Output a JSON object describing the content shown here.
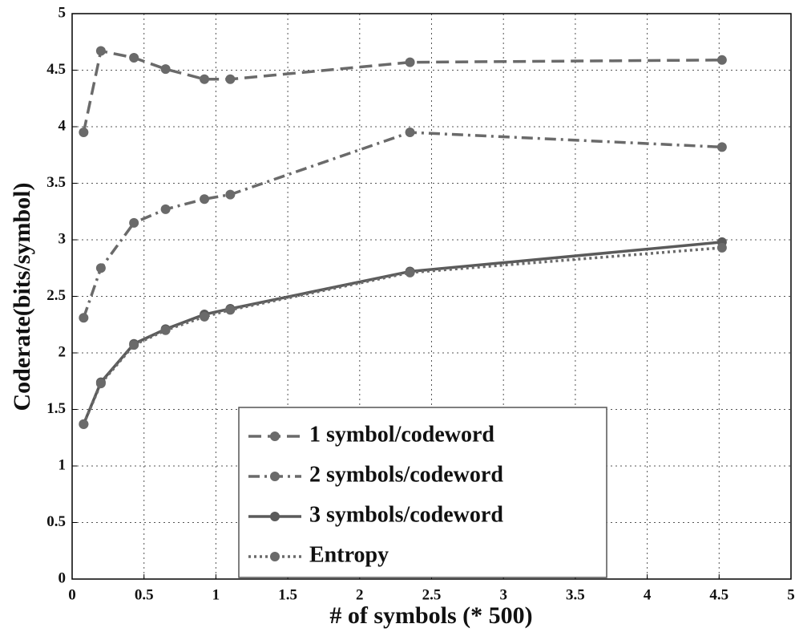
{
  "chart_data": {
    "type": "line",
    "xlabel": "# of symbols (* 500)",
    "ylabel": "Coderate(bits/symbol)",
    "x": [
      0.08,
      0.2,
      0.43,
      0.65,
      0.92,
      1.1,
      2.35,
      4.52
    ],
    "series": [
      {
        "name": "1 symbol/codeword",
        "color": "#6a6a6a",
        "line_style": "dashed",
        "values": [
          3.95,
          4.67,
          4.61,
          4.51,
          4.42,
          4.42,
          4.57,
          4.59
        ]
      },
      {
        "name": "2 symbols/codeword",
        "color": "#6a6a6a",
        "line_style": "dashdot",
        "values": [
          2.31,
          2.75,
          3.15,
          3.27,
          3.36,
          3.4,
          3.95,
          3.82
        ]
      },
      {
        "name": "3 symbols/codeword",
        "color": "#5a5a5a",
        "line_style": "solid",
        "values": [
          1.37,
          1.74,
          2.08,
          2.21,
          2.34,
          2.39,
          2.72,
          2.98
        ]
      },
      {
        "name": "Entropy",
        "color": "#6a6a6a",
        "line_style": "dotted",
        "values": [
          1.37,
          1.73,
          2.07,
          2.2,
          2.32,
          2.38,
          2.71,
          2.93
        ]
      }
    ],
    "xlim": [
      0,
      5
    ],
    "xticks": [
      0,
      0.5,
      1,
      1.5,
      2,
      2.5,
      3,
      3.5,
      4,
      4.5,
      5
    ],
    "ylim": [
      0,
      5
    ],
    "yticks": [
      0,
      0.5,
      1,
      1.5,
      2,
      2.5,
      3,
      3.5,
      4,
      4.5,
      5
    ],
    "grid": true,
    "legend": "lower center"
  }
}
